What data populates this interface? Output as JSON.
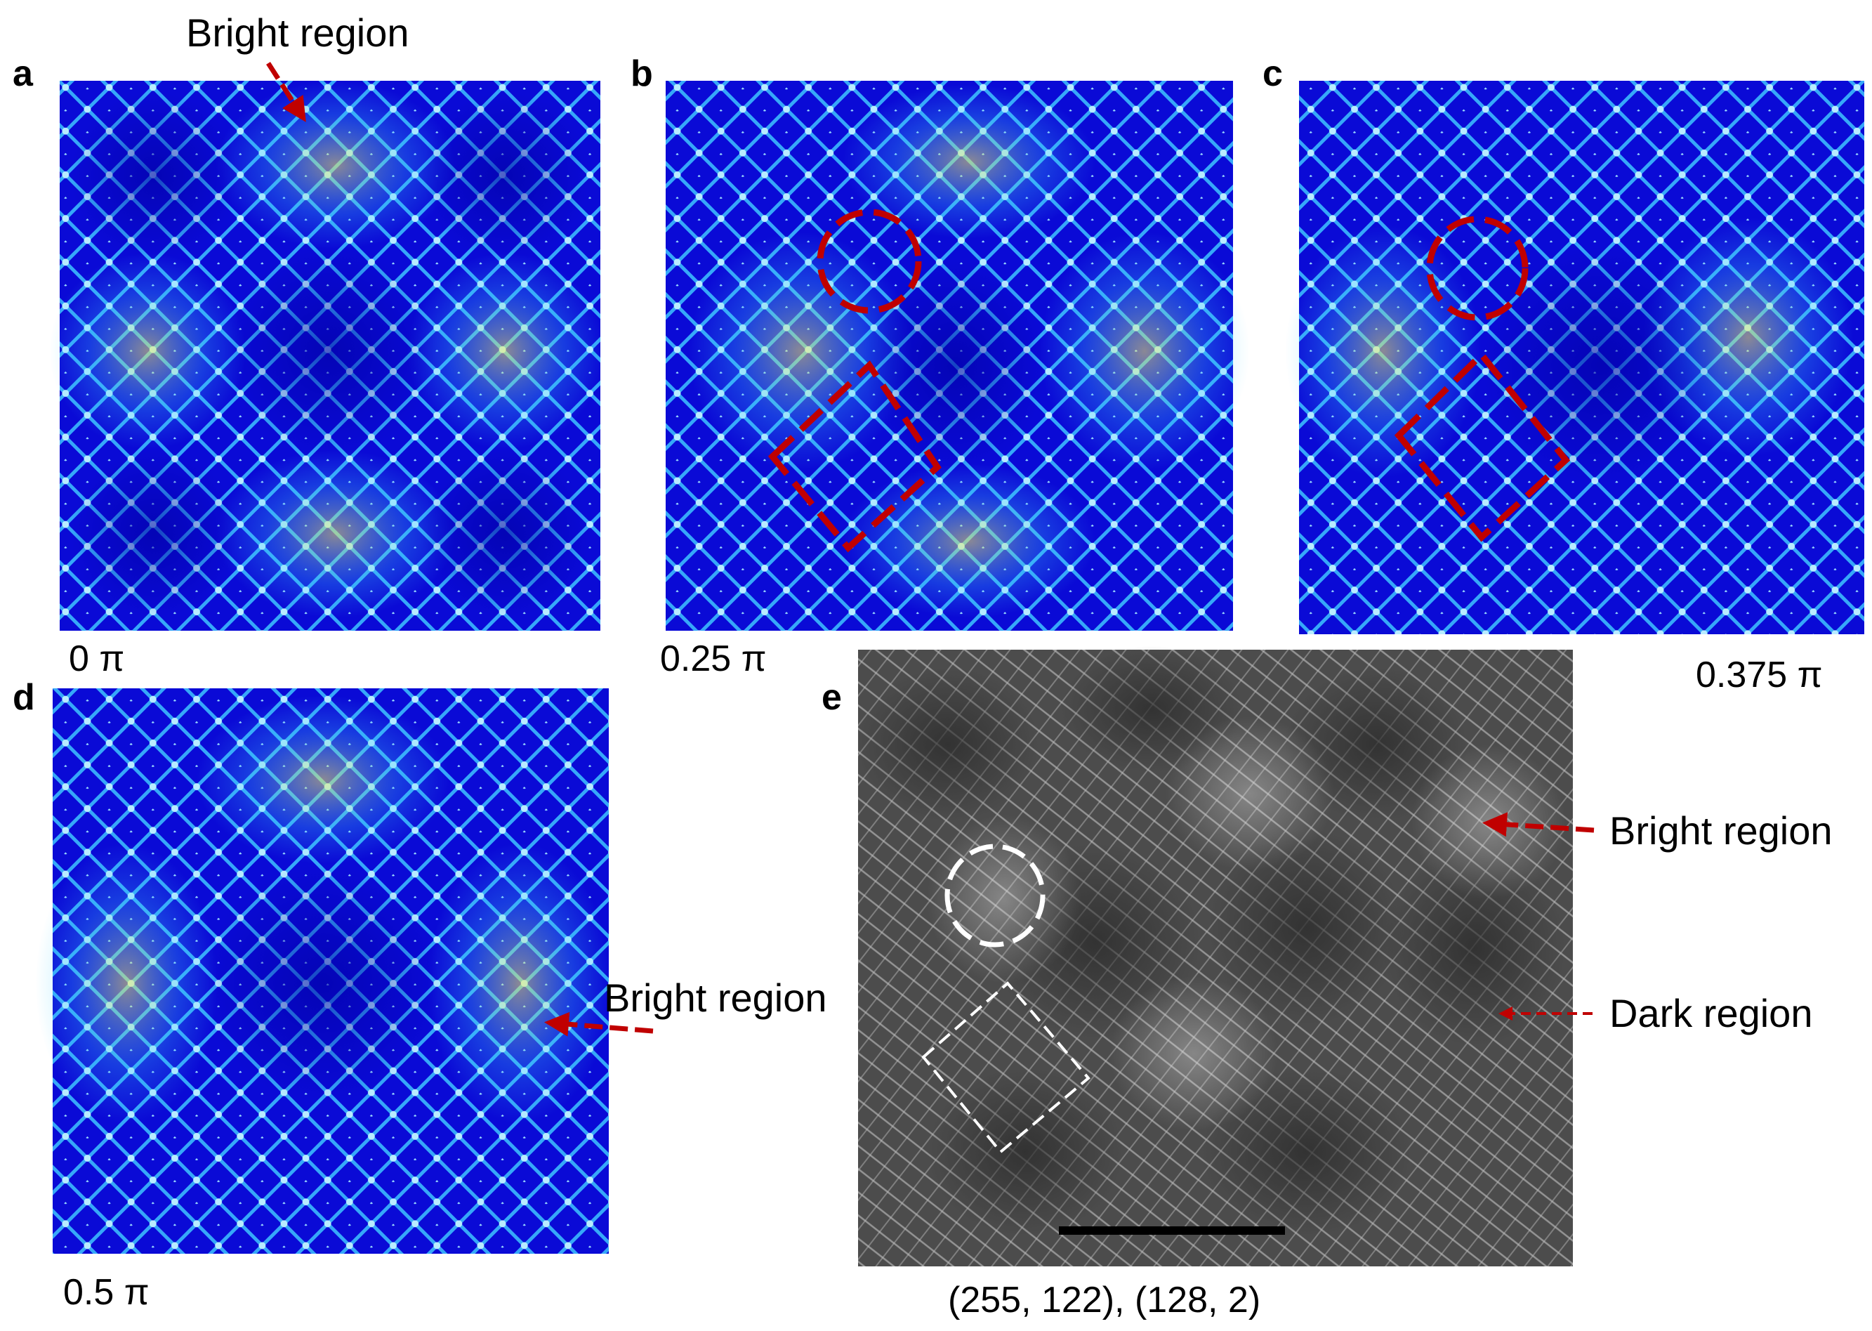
{
  "panels": [
    {
      "label": "a",
      "caption": "0 π"
    },
    {
      "label": "b",
      "caption": "0.25 π"
    },
    {
      "label": "c",
      "caption": "0.375 π"
    },
    {
      "label": "d",
      "caption": "0.5 π"
    },
    {
      "label": "e",
      "caption": "(255, 122), (128, 2)"
    }
  ],
  "annotations": {
    "a_bright": "Bright region",
    "d_bright": "Bright region",
    "e_bright": "Bright region",
    "e_dark": "Dark region"
  },
  "colors": {
    "sim_background": "#0a0ad6",
    "sim_line": "#3ec4ff",
    "sim_highlight": "#f4f060",
    "annotation_red": "#c00000",
    "sem_background": "#5a5a5a",
    "sem_line": "#e0e0e0"
  }
}
